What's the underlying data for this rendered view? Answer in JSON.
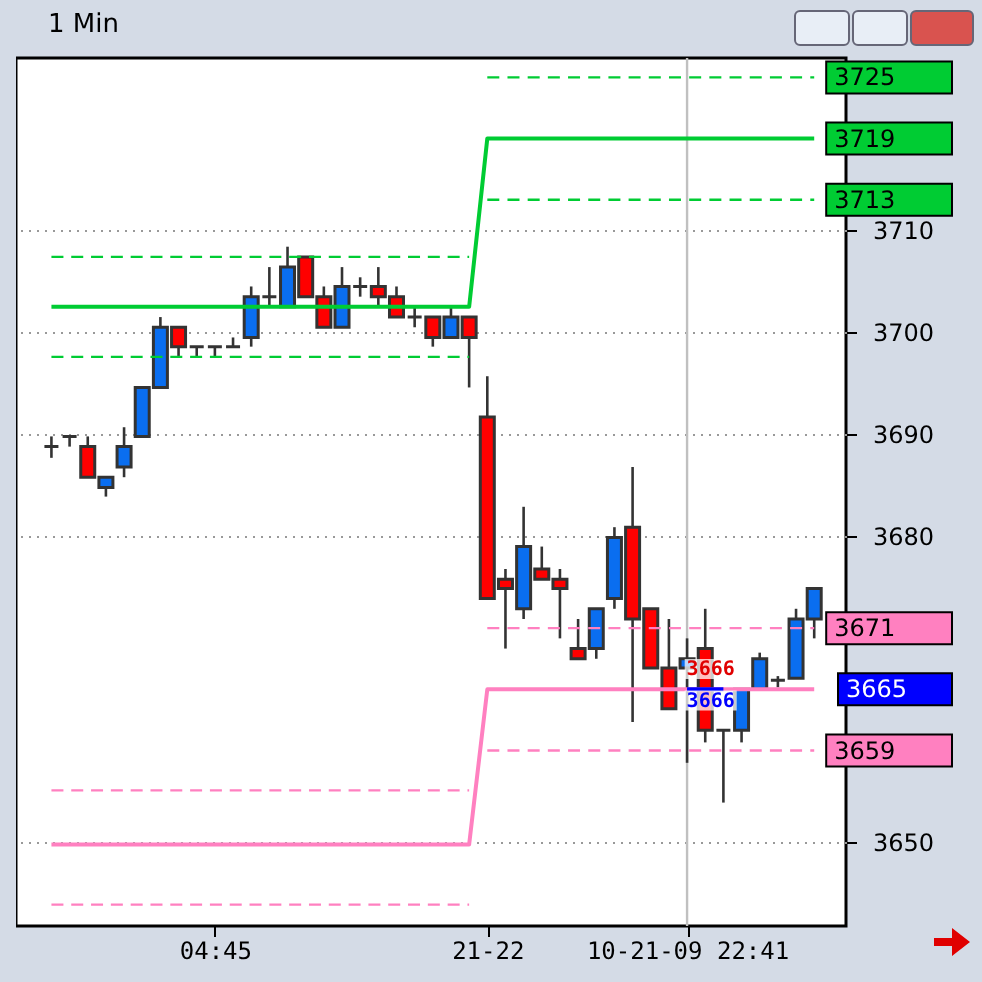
{
  "chart_data": {
    "type": "candlestick",
    "title": "1 Min",
    "categories": [
      null,
      null,
      null,
      null,
      null,
      null,
      null,
      null,
      null,
      "04:45",
      null,
      null,
      null,
      null,
      null,
      null,
      null,
      null,
      null,
      null,
      null,
      null,
      null,
      null,
      "21-22",
      null,
      null,
      null,
      null,
      null,
      null,
      null,
      null,
      null,
      null,
      "10-21-09 22:41",
      null,
      null,
      null,
      null,
      null,
      null,
      null
    ],
    "ohlc": [
      [
        3688.8,
        3689.8,
        3687.7,
        3688.8
      ],
      [
        3689.8,
        3689.8,
        3688.8,
        3689.8
      ],
      [
        3688.8,
        3689.8,
        3685.8,
        3685.8
      ],
      [
        3684.8,
        3685.8,
        3683.9,
        3685.8
      ],
      [
        3686.8,
        3690.7,
        3685.8,
        3688.8
      ],
      [
        3689.8,
        3694.6,
        3689.8,
        3694.6
      ],
      [
        3694.6,
        3701.5,
        3694.6,
        3700.5
      ],
      [
        3700.5,
        3700.5,
        3697.6,
        3698.6
      ],
      [
        3698.6,
        3698.6,
        3697.6,
        3698.6
      ],
      [
        3698.6,
        3698.6,
        3697.6,
        3698.6
      ],
      [
        3698.6,
        3699.5,
        3698.6,
        3698.6
      ],
      [
        3699.5,
        3704.5,
        3698.6,
        3703.5
      ],
      [
        3703.5,
        3706.4,
        3702.5,
        3703.5
      ],
      [
        3702.5,
        3708.4,
        3702.5,
        3706.4
      ],
      [
        3707.4,
        3707.4,
        3703.5,
        3703.5
      ],
      [
        3703.5,
        3704.5,
        3700.5,
        3700.5
      ],
      [
        3700.5,
        3706.4,
        3700.5,
        3704.5
      ],
      [
        3704.5,
        3705.4,
        3703.5,
        3704.5
      ],
      [
        3704.5,
        3706.4,
        3702.5,
        3703.5
      ],
      [
        3703.5,
        3704.5,
        3701.5,
        3701.5
      ],
      [
        3701.5,
        3702.5,
        3700.5,
        3701.5
      ],
      [
        3701.5,
        3701.5,
        3698.6,
        3699.5
      ],
      [
        3699.5,
        3702.5,
        3699.5,
        3701.5
      ],
      [
        3701.5,
        3701.5,
        3694.6,
        3699.5
      ],
      [
        3691.7,
        3695.7,
        3673.9,
        3673.9
      ],
      [
        3675.8,
        3676.8,
        3669.0,
        3674.9
      ],
      [
        3672.9,
        3682.9,
        3671.9,
        3679.0
      ],
      [
        3676.8,
        3679.0,
        3675.8,
        3675.8
      ],
      [
        3675.8,
        3676.8,
        3670.0,
        3674.9
      ],
      [
        3669.0,
        3671.9,
        3668.0,
        3668.0
      ],
      [
        3669.0,
        3672.9,
        3668.0,
        3672.9
      ],
      [
        3673.9,
        3680.9,
        3672.9,
        3679.9
      ],
      [
        3680.9,
        3686.8,
        3661.8,
        3671.9
      ],
      [
        3672.9,
        3672.9,
        3667.1,
        3667.1
      ],
      [
        3667.1,
        3671.9,
        3663.1,
        3663.1
      ],
      [
        3667.1,
        3670.0,
        3657.8,
        3668.0
      ],
      [
        3669.0,
        3672.9,
        3659.8,
        3661.0
      ],
      [
        3661.0,
        3661.0,
        3653.9,
        3661.0
      ],
      [
        3661.0,
        3665.0,
        3659.8,
        3665.0
      ],
      [
        3665.0,
        3668.6,
        3665.0,
        3668.0
      ],
      [
        3665.9,
        3666.3,
        3665.2,
        3665.9
      ],
      [
        3666.1,
        3672.9,
        3666.1,
        3671.9
      ],
      [
        3671.9,
        3674.9,
        3670.0,
        3674.9
      ]
    ],
    "colors": [
      "#333333",
      "#333333",
      "#ff0000",
      "#0a6ef0",
      "#0a6ef0",
      "#0a6ef0",
      "#0a6ef0",
      "#ff0000",
      "#333333",
      "#333333",
      "#333333",
      "#0a6ef0",
      "#333333",
      "#0a6ef0",
      "#ff0000",
      "#ff0000",
      "#0a6ef0",
      "#333333",
      "#ff0000",
      "#ff0000",
      "#333333",
      "#ff0000",
      "#0a6ef0",
      "#ff0000",
      "#ff0000",
      "#ff0000",
      "#0a6ef0",
      "#ff0000",
      "#ff0000",
      "#ff0000",
      "#0a6ef0",
      "#0a6ef0",
      "#ff0000",
      "#ff0000",
      "#ff0000",
      "#0a6ef0",
      "#ff0000",
      "#333333",
      "#0a6ef0",
      "#0a6ef0",
      "#333333",
      "#0a6ef0",
      "#0a6ef0"
    ],
    "series": [
      {
        "type": "line",
        "color": "#00cc33",
        "line_style": "solid",
        "values": [
          3702.5,
          3702.5,
          3702.5,
          3702.5,
          3702.5,
          3702.5,
          3702.5,
          3702.5,
          3702.5,
          3702.5,
          3702.5,
          3702.5,
          3702.5,
          3702.5,
          3702.5,
          3702.5,
          3702.5,
          3702.5,
          3702.5,
          3702.5,
          3702.5,
          3702.5,
          3702.5,
          3702.5,
          3719,
          3719,
          3719,
          3719,
          3719,
          3719,
          3719,
          3719,
          3719,
          3719,
          3719,
          3719,
          3719,
          3719,
          3719,
          3719,
          3719,
          3719,
          3719
        ],
        "value_labels": [
          null,
          null,
          null,
          null,
          null,
          null,
          null,
          null,
          null,
          null,
          null,
          null,
          null,
          null,
          null,
          null,
          null,
          null,
          null,
          null,
          null,
          null,
          null,
          null,
          null,
          null,
          null,
          null,
          null,
          null,
          null,
          null,
          null,
          null,
          null,
          null,
          null,
          null,
          null,
          null,
          null,
          null,
          "3719"
        ]
      },
      {
        "type": "line",
        "color": "#00cc33",
        "line_style": "dashed",
        "values": [
          3707.4,
          3707.4,
          3707.4,
          3707.4,
          3707.4,
          3707.4,
          3707.4,
          3707.4,
          3707.4,
          3707.4,
          3707.4,
          3707.4,
          3707.4,
          3707.4,
          3707.4,
          3707.4,
          3707.4,
          3707.4,
          3707.4,
          3707.4,
          3707.4,
          3707.4,
          3707.4,
          3707.4,
          null,
          null,
          null,
          null,
          null,
          null,
          null,
          null,
          null,
          null,
          null,
          null,
          null,
          null,
          null,
          null,
          null,
          null,
          null
        ]
      },
      {
        "type": "line",
        "color": "#00cc33",
        "line_style": "dashed",
        "values": [
          null,
          null,
          null,
          null,
          null,
          null,
          null,
          null,
          null,
          null,
          null,
          null,
          null,
          null,
          null,
          null,
          null,
          null,
          null,
          null,
          null,
          null,
          null,
          null,
          3725,
          3725,
          3725,
          3725,
          3725,
          3725,
          3725,
          3725,
          3725,
          3725,
          3725,
          3725,
          3725,
          3725,
          3725,
          3725,
          3725,
          3725,
          3725
        ],
        "value_labels": [
          null,
          null,
          null,
          null,
          null,
          null,
          null,
          null,
          null,
          null,
          null,
          null,
          null,
          null,
          null,
          null,
          null,
          null,
          null,
          null,
          null,
          null,
          null,
          null,
          null,
          null,
          null,
          null,
          null,
          null,
          null,
          null,
          null,
          null,
          null,
          null,
          null,
          null,
          null,
          null,
          null,
          null,
          "3725"
        ]
      },
      {
        "type": "line",
        "color": "#00cc33",
        "line_style": "dashed",
        "values": [
          3697.6,
          3697.6,
          3697.6,
          3697.6,
          3697.6,
          3697.6,
          3697.6,
          3697.6,
          3697.6,
          3697.6,
          3697.6,
          3697.6,
          3697.6,
          3697.6,
          3697.6,
          3697.6,
          3697.6,
          3697.6,
          3697.6,
          3697.6,
          3697.6,
          3697.6,
          3697.6,
          3697.6,
          null,
          null,
          null,
          null,
          null,
          null,
          null,
          null,
          null,
          null,
          null,
          null,
          null,
          null,
          null,
          null,
          null,
          null,
          null
        ]
      },
      {
        "type": "line",
        "color": "#00cc33",
        "line_style": "dashed",
        "values": [
          null,
          null,
          null,
          null,
          null,
          null,
          null,
          null,
          null,
          null,
          null,
          null,
          null,
          null,
          null,
          null,
          null,
          null,
          null,
          null,
          null,
          null,
          null,
          null,
          3713,
          3713,
          3713,
          3713,
          3713,
          3713,
          3713,
          3713,
          3713,
          3713,
          3713,
          3713,
          3713,
          3713,
          3713,
          3713,
          3713,
          3713,
          3713
        ],
        "value_labels": [
          null,
          null,
          null,
          null,
          null,
          null,
          null,
          null,
          null,
          null,
          null,
          null,
          null,
          null,
          null,
          null,
          null,
          null,
          null,
          null,
          null,
          null,
          null,
          null,
          null,
          null,
          null,
          null,
          null,
          null,
          null,
          null,
          null,
          null,
          null,
          null,
          null,
          null,
          null,
          null,
          null,
          null,
          "3713"
        ]
      },
      {
        "type": "line",
        "color": "#ff80c0",
        "line_style": "solid",
        "values": [
          3649.8,
          3649.8,
          3649.8,
          3649.8,
          3649.8,
          3649.8,
          3649.8,
          3649.8,
          3649.8,
          3649.8,
          3649.8,
          3649.8,
          3649.8,
          3649.8,
          3649.8,
          3649.8,
          3649.8,
          3649.8,
          3649.8,
          3649.8,
          3649.8,
          3649.8,
          3649.8,
          3649.8,
          3665,
          3665,
          3665,
          3665,
          3665,
          3665,
          3665,
          3665,
          3665,
          3665,
          3665,
          3665,
          3665,
          3665,
          3665,
          3665,
          3665,
          3665,
          3665
        ]
      },
      {
        "type": "line",
        "color": "#ff80c0",
        "line_style": "dashed",
        "values": [
          3655.1,
          3655.1,
          3655.1,
          3655.1,
          3655.1,
          3655.1,
          3655.1,
          3655.1,
          3655.1,
          3655.1,
          3655.1,
          3655.1,
          3655.1,
          3655.1,
          3655.1,
          3655.1,
          3655.1,
          3655.1,
          3655.1,
          3655.1,
          3655.1,
          3655.1,
          3655.1,
          3655.1,
          null,
          null,
          null,
          null,
          null,
          null,
          null,
          null,
          null,
          null,
          null,
          null,
          null,
          null,
          null,
          null,
          null,
          null,
          null
        ]
      },
      {
        "type": "line",
        "color": "#ff80c0",
        "line_style": "dashed",
        "values": [
          null,
          null,
          null,
          null,
          null,
          null,
          null,
          null,
          null,
          null,
          null,
          null,
          null,
          null,
          null,
          null,
          null,
          null,
          null,
          null,
          null,
          null,
          null,
          null,
          3671,
          3671,
          3671,
          3671,
          3671,
          3671,
          3671,
          3671,
          3671,
          3671,
          3671,
          3671,
          3671,
          3671,
          3671,
          3671,
          3671,
          3671,
          3671
        ],
        "value_labels": [
          null,
          null,
          null,
          null,
          null,
          null,
          null,
          null,
          null,
          null,
          null,
          null,
          null,
          null,
          null,
          null,
          null,
          null,
          null,
          null,
          null,
          null,
          null,
          null,
          null,
          null,
          null,
          null,
          null,
          null,
          null,
          null,
          null,
          null,
          null,
          null,
          null,
          null,
          null,
          null,
          null,
          null,
          "3671"
        ]
      },
      {
        "type": "line",
        "color": "#ff80c0",
        "line_style": "dashed",
        "values": [
          3643.9,
          3643.9,
          3643.9,
          3643.9,
          3643.9,
          3643.9,
          3643.9,
          3643.9,
          3643.9,
          3643.9,
          3643.9,
          3643.9,
          3643.9,
          3643.9,
          3643.9,
          3643.9,
          3643.9,
          3643.9,
          3643.9,
          3643.9,
          3643.9,
          3643.9,
          3643.9,
          3643.9,
          null,
          null,
          null,
          null,
          null,
          null,
          null,
          null,
          null,
          null,
          null,
          null,
          null,
          null,
          null,
          null,
          null,
          null,
          null
        ]
      },
      {
        "type": "line",
        "color": "#ff80c0",
        "line_style": "dashed",
        "values": [
          null,
          null,
          null,
          null,
          null,
          null,
          null,
          null,
          null,
          null,
          null,
          null,
          null,
          null,
          null,
          null,
          null,
          null,
          null,
          null,
          null,
          null,
          null,
          null,
          3659,
          3659,
          3659,
          3659,
          3659,
          3659,
          3659,
          3659,
          3659,
          3659,
          3659,
          3659,
          3659,
          3659,
          3659,
          3659,
          3659,
          3659,
          3659
        ],
        "value_labels": [
          null,
          null,
          null,
          null,
          null,
          null,
          null,
          null,
          null,
          null,
          null,
          null,
          null,
          null,
          null,
          null,
          null,
          null,
          null,
          null,
          null,
          null,
          null,
          null,
          null,
          null,
          null,
          null,
          null,
          null,
          null,
          null,
          null,
          null,
          null,
          null,
          null,
          null,
          null,
          null,
          null,
          null,
          "3659"
        ]
      },
      {
        "type": "line",
        "color": "#0000ff",
        "line_style": "solid",
        "values": [
          null,
          null,
          null,
          null,
          null,
          null,
          null,
          null,
          null,
          null,
          null,
          null,
          null,
          null,
          null,
          null,
          null,
          null,
          null,
          null,
          null,
          null,
          null,
          null,
          null,
          null,
          null,
          null,
          null,
          null,
          null,
          null,
          null,
          null,
          null,
          3665,
          3665,
          3665,
          null,
          null,
          null,
          null,
          null
        ]
      }
    ],
    "annotations": [
      {
        "text": "3666",
        "x": "10-21-09 22:41",
        "y": 3667.0
      },
      {
        "text": "3666",
        "x": "10-21-09 22:41",
        "y": 3663.9
      },
      "3665"
    ],
    "ref_lines": [
      {
        "axis": "x",
        "value": "10-21-09 22:41",
        "color": "#c0c0c0"
      }
    ],
    "ylim": [
      3641.8,
      3726.9
    ],
    "yticks": [
      3650,
      3680,
      3690,
      3700,
      3710
    ],
    "grid": "y"
  }
}
